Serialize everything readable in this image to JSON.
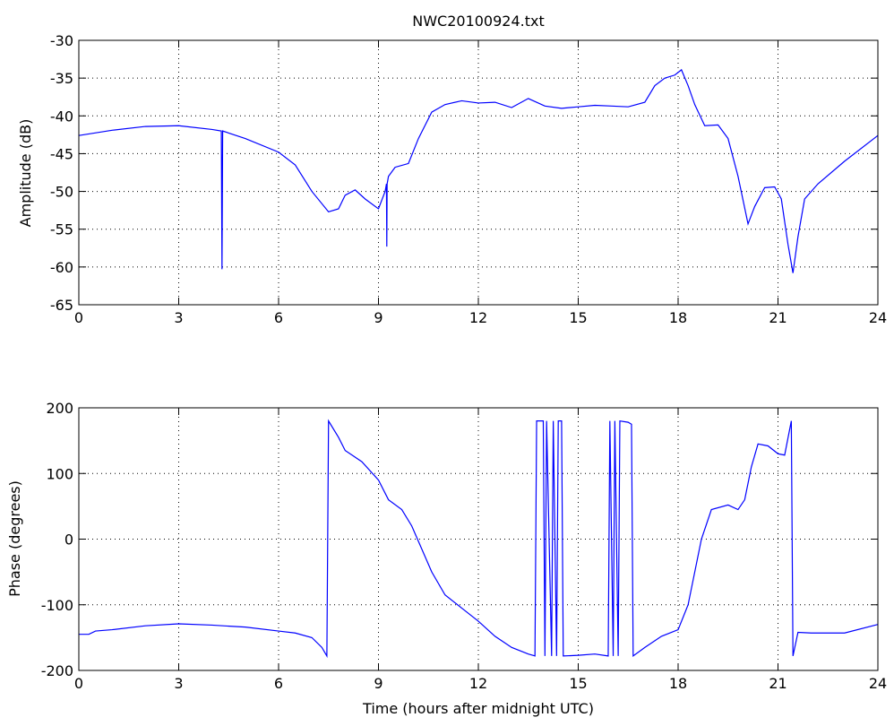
{
  "chart_data": [
    {
      "type": "line",
      "title": "NWC20100924.txt",
      "ylabel": "Amplitude (dB)",
      "color": "#0000ff",
      "grid": true,
      "xlim": [
        0,
        24
      ],
      "xticks": [
        0,
        3,
        6,
        9,
        12,
        15,
        18,
        21,
        24
      ],
      "ylim": [
        -65,
        -30
      ],
      "yticks": [
        -65,
        -60,
        -55,
        -50,
        -45,
        -40,
        -35,
        -30
      ],
      "x": [
        0,
        1,
        2,
        3,
        4,
        4.28,
        4.3,
        4.32,
        5,
        6,
        6.5,
        7,
        7.5,
        7.8,
        8.0,
        8.3,
        8.6,
        9.0,
        9.2,
        9.24,
        9.25,
        9.26,
        9.3,
        9.5,
        9.9,
        10.2,
        10.6,
        11,
        11.5,
        12,
        12.5,
        13,
        13.5,
        14,
        14.5,
        15,
        15.5,
        16,
        16.5,
        17,
        17.3,
        17.6,
        17.9,
        18.1,
        18.3,
        18.5,
        18.8,
        19.2,
        19.5,
        19.8,
        20.1,
        20.3,
        20.6,
        20.9,
        21.1,
        21.3,
        21.45,
        21.6,
        21.8,
        22.2,
        23,
        24
      ],
      "values": [
        -42.6,
        -41.9,
        -41.4,
        -41.3,
        -41.8,
        -42,
        -60.3,
        -42,
        -43,
        -44.8,
        -46.5,
        -50,
        -52.7,
        -52.3,
        -50.5,
        -49.8,
        -51,
        -52.3,
        -50,
        -49,
        -57.3,
        -49,
        -48,
        -46.8,
        -46.3,
        -43,
        -39.5,
        -38.5,
        -38,
        -38.3,
        -38.2,
        -38.9,
        -37.7,
        -38.7,
        -39,
        -38.8,
        -38.6,
        -38.7,
        -38.8,
        -38.2,
        -36,
        -35,
        -34.6,
        -33.9,
        -36,
        -38.5,
        -41.3,
        -41.2,
        -43,
        -48,
        -54.3,
        -52,
        -49.5,
        -49.4,
        -51,
        -57,
        -60.8,
        -56,
        -51,
        -49,
        -46,
        -42.6
      ]
    },
    {
      "type": "line",
      "xlabel": "Time (hours after midnight UTC)",
      "ylabel": "Phase (degrees)",
      "color": "#0000ff",
      "grid": true,
      "xlim": [
        0,
        24
      ],
      "xticks": [
        0,
        3,
        6,
        9,
        12,
        15,
        18,
        21,
        24
      ],
      "ylim": [
        -200,
        200
      ],
      "yticks": [
        -200,
        -100,
        0,
        100,
        200
      ],
      "x": [
        0,
        0.3,
        0.5,
        1,
        2,
        3,
        4,
        5,
        6,
        6.5,
        7,
        7.3,
        7.45,
        7.5,
        7.8,
        8,
        8.5,
        9,
        9.3,
        9.7,
        10,
        10.3,
        10.6,
        11,
        11.5,
        12,
        12.5,
        13,
        13.5,
        13.7,
        13.75,
        13.95,
        14.0,
        14.05,
        14.2,
        14.25,
        14.35,
        14.4,
        14.5,
        14.55,
        15,
        15.5,
        15.9,
        15.95,
        16.05,
        16.1,
        16.2,
        16.25,
        16.5,
        16.6,
        16.65,
        17,
        17.5,
        18,
        18.3,
        18.7,
        19,
        19.5,
        19.8,
        20,
        20.2,
        20.4,
        20.7,
        21,
        21.2,
        21.4,
        21.45,
        21.6,
        22,
        23,
        24
      ],
      "values": [
        -145,
        -145,
        -140,
        -138,
        -132,
        -129,
        -131,
        -134,
        -140,
        -143,
        -150,
        -165,
        -178,
        180,
        155,
        135,
        118,
        90,
        60,
        45,
        20,
        -15,
        -50,
        -85,
        -105,
        -125,
        -148,
        -165,
        -175,
        -178,
        180,
        180,
        -178,
        180,
        -178,
        180,
        -178,
        180,
        180,
        -178,
        -177,
        -175,
        -178,
        180,
        -178,
        180,
        -178,
        180,
        178,
        175,
        -178,
        -165,
        -148,
        -138,
        -100,
        0,
        45,
        52,
        45,
        60,
        110,
        145,
        142,
        130,
        128,
        180,
        -178,
        -142,
        -143,
        -143,
        -130
      ]
    }
  ]
}
